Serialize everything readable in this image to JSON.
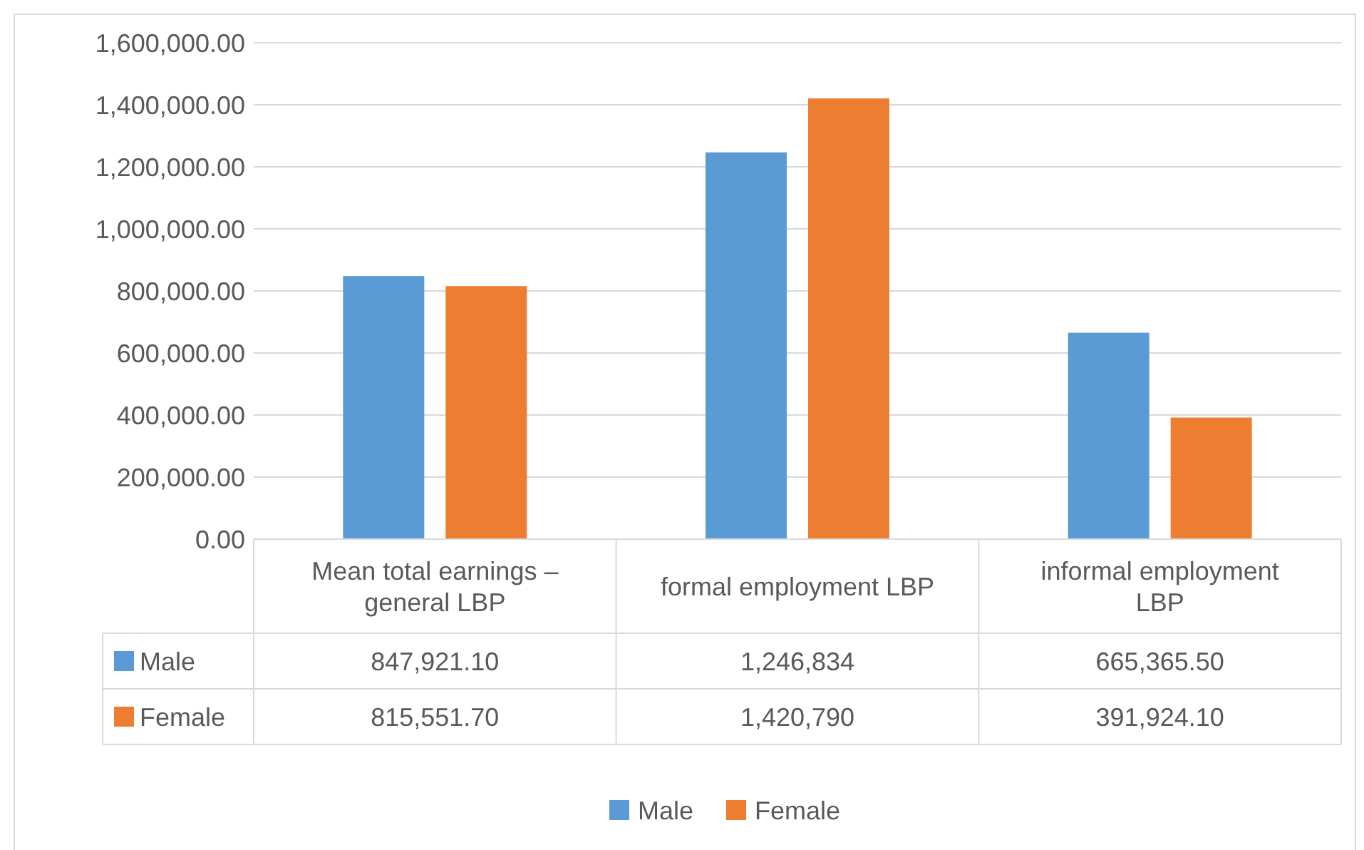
{
  "chart_data": {
    "type": "bar",
    "categories": [
      "Mean total earnings – general LBP",
      "formal employment LBP",
      "informal employment LBP"
    ],
    "series": [
      {
        "name": "Male",
        "color": "#5b9bd5",
        "values": [
          847921.1,
          1246834,
          665365.5
        ],
        "value_labels": [
          "847,921.10",
          "1,246,834",
          "665,365.50"
        ]
      },
      {
        "name": "Female",
        "color": "#ed7d31",
        "values": [
          815551.7,
          1420790,
          391924.1
        ],
        "value_labels": [
          "815,551.70",
          "1,420,790",
          "391,924.10"
        ]
      }
    ],
    "ylim": [
      0,
      1600000
    ],
    "yticks": [
      {
        "value": 0,
        "label": "0.00"
      },
      {
        "value": 200000,
        "label": "200,000.00"
      },
      {
        "value": 400000,
        "label": "400,000.00"
      },
      {
        "value": 600000,
        "label": "600,000.00"
      },
      {
        "value": 800000,
        "label": "800,000.00"
      },
      {
        "value": 1000000,
        "label": "1,000,000.00"
      },
      {
        "value": 1200000,
        "label": "1,200,000.00"
      },
      {
        "value": 1400000,
        "label": "1,400,000.00"
      },
      {
        "value": 1600000,
        "label": "1,600,000.00"
      }
    ],
    "grid": "y",
    "legend": "bottom"
  }
}
